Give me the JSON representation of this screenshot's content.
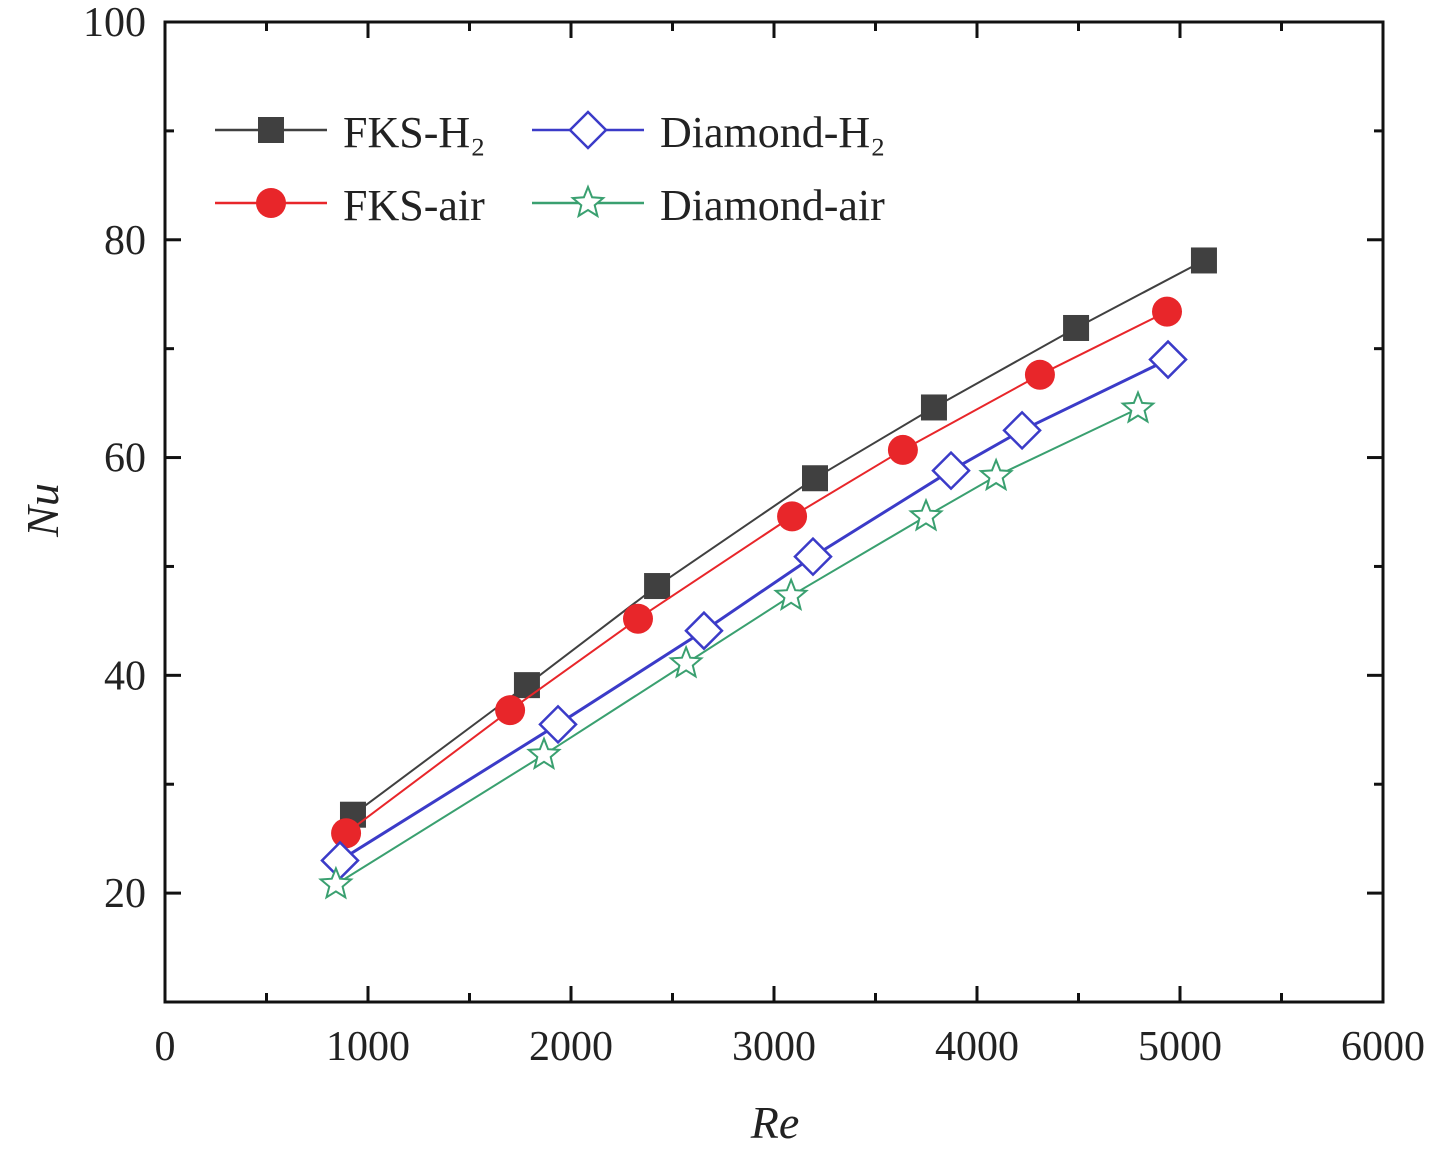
{
  "chart_data": {
    "type": "line",
    "title": "",
    "xlabel": "Re",
    "ylabel": "Nu",
    "xlim": [
      0,
      6000
    ],
    "ylim": [
      10,
      100
    ],
    "xticks": [
      0,
      1000,
      2000,
      3000,
      4000,
      5000,
      6000
    ],
    "yticks": [
      20,
      40,
      60,
      80,
      100
    ],
    "grid": false,
    "legend_position": "top-left",
    "series": [
      {
        "name": "FKS-H₂",
        "color": "#404040",
        "marker": "square-filled",
        "x": [
          926,
          1783,
          2424,
          3202,
          3788,
          4488,
          5118
        ],
        "y": [
          27.2,
          39.1,
          48.2,
          58.1,
          64.6,
          71.9,
          78.1
        ]
      },
      {
        "name": "FKS-air",
        "color": "#e8262a",
        "marker": "circle-filled",
        "x": [
          892,
          1700,
          2330,
          3089,
          3635,
          4310,
          4936
        ],
        "y": [
          25.5,
          36.8,
          45.2,
          54.6,
          60.7,
          67.6,
          73.4
        ]
      },
      {
        "name": "Diamond-H₂",
        "color": "#3b3bc8",
        "marker": "diamond-open",
        "x": [
          862,
          1936,
          2655,
          3192,
          3872,
          4222,
          4941
        ],
        "y": [
          23.0,
          35.5,
          44.1,
          50.9,
          58.8,
          62.5,
          69.0
        ]
      },
      {
        "name": "Diamond-air",
        "color": "#3aa070",
        "marker": "star-open",
        "x": [
          842,
          1867,
          2567,
          3084,
          3749,
          4094,
          4793
        ],
        "y": [
          20.8,
          32.7,
          41.1,
          47.3,
          54.6,
          58.3,
          64.5
        ]
      }
    ]
  }
}
